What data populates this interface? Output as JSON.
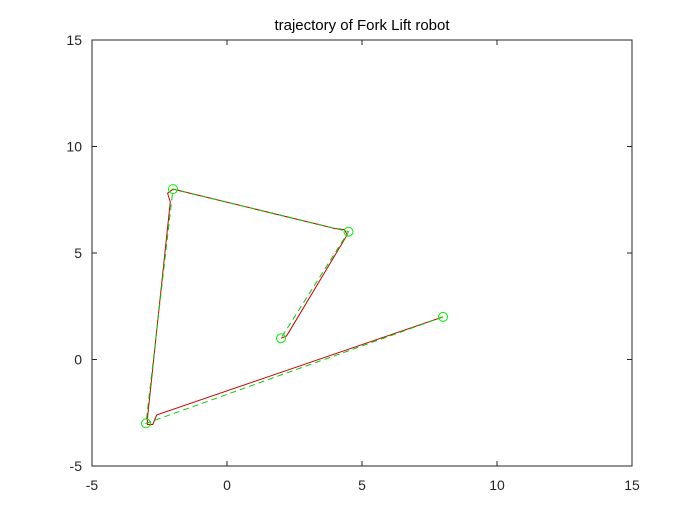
{
  "chart_data": {
    "type": "line",
    "title": "trajectory of Fork Lift robot",
    "xlabel": "",
    "ylabel": "",
    "xlim": [
      -5,
      15
    ],
    "ylim": [
      -5,
      15
    ],
    "xticks": [
      -5,
      0,
      5,
      10,
      15
    ],
    "yticks": [
      -5,
      0,
      5,
      10,
      15
    ],
    "grid": false,
    "legend": "none",
    "series": [
      {
        "style": "dashed",
        "color": "#00cc00",
        "role": "planned path",
        "x": [
          8,
          -3,
          -2,
          4.5,
          2
        ],
        "y": [
          2,
          -3,
          8,
          6,
          1
        ]
      },
      {
        "style": "solid",
        "color": "#cc0000",
        "role": "actual trajectory",
        "x": [
          8,
          -2.6,
          -2.75,
          -2.95,
          -2.95,
          -2.1,
          -2.2,
          -2.0,
          4.0,
          4.35,
          4.45,
          2.3,
          2.2,
          2.0
        ],
        "y": [
          2,
          -2.6,
          -3.05,
          -3.05,
          -2.8,
          7.4,
          7.8,
          8.0,
          6.15,
          6.1,
          5.85,
          1.3,
          1.1,
          1.0
        ]
      }
    ],
    "waypoints": {
      "marker": "circle",
      "color": "#00ee00",
      "x": [
        8,
        -3,
        -2,
        4.5,
        2
      ],
      "y": [
        2,
        -3,
        8,
        6,
        1
      ]
    }
  }
}
